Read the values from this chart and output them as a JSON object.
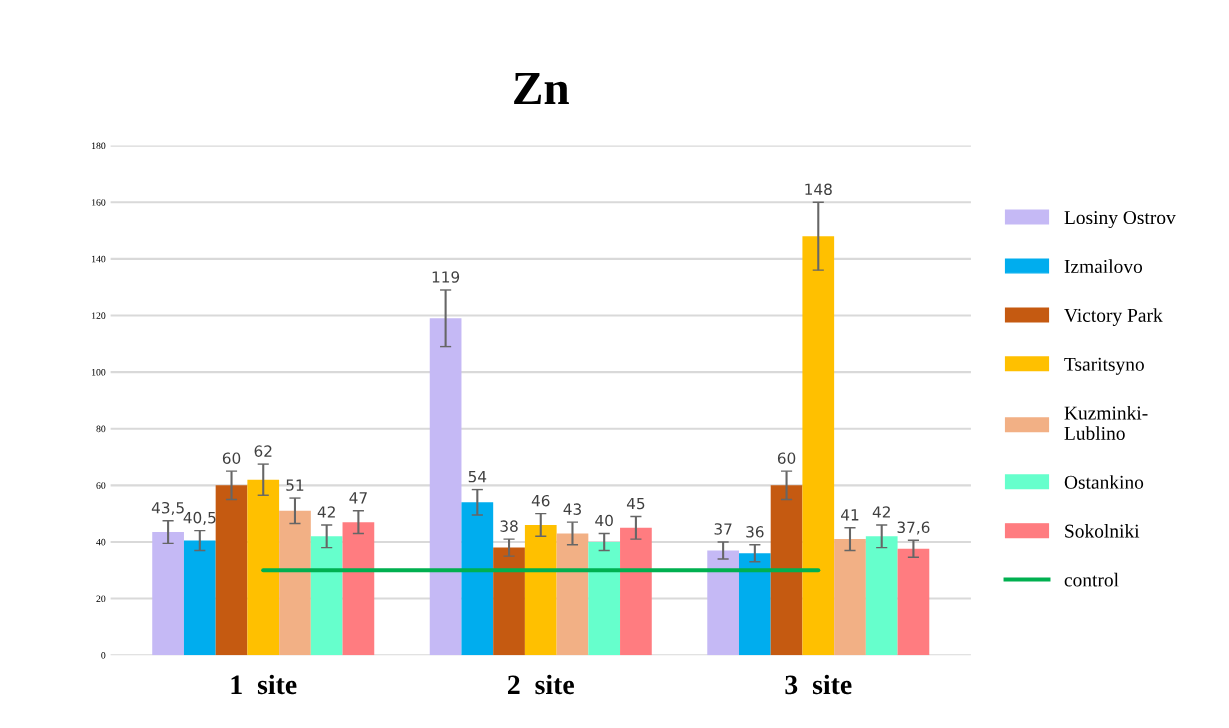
{
  "chart_data": {
    "type": "bar",
    "title": "Zn",
    "categories": [
      "1  site",
      "2  site",
      "3  site"
    ],
    "ylim": [
      0,
      180
    ],
    "yticks": [
      0,
      20,
      40,
      60,
      80,
      100,
      120,
      140,
      160,
      180
    ],
    "grid": "y",
    "legend": "right",
    "series": [
      {
        "name": "Losiny Ostrov",
        "color": "#c5b9f5",
        "values": [
          43.5,
          119,
          37
        ],
        "errors": [
          4,
          10,
          3
        ],
        "value_labels": [
          "43,5",
          "119",
          "37"
        ]
      },
      {
        "name": "Izmailovo",
        "color": "#00adee",
        "values": [
          40.5,
          54,
          36
        ],
        "errors": [
          3.5,
          4.5,
          3
        ],
        "value_labels": [
          "40,5",
          "54",
          "36"
        ]
      },
      {
        "name": "Victory Park",
        "color": "#c55a11",
        "values": [
          60,
          38,
          60
        ],
        "errors": [
          5,
          3,
          5
        ],
        "value_labels": [
          "60",
          "38",
          "60"
        ]
      },
      {
        "name": "Tsaritsyno",
        "color": "#ffc000",
        "values": [
          62,
          46,
          148
        ],
        "errors": [
          5.5,
          4,
          12
        ],
        "value_labels": [
          "62",
          "46",
          "148"
        ]
      },
      {
        "name": "Kuzminki-\nLublino",
        "color": "#f2b085",
        "values": [
          51,
          43,
          41
        ],
        "errors": [
          4.5,
          4,
          4
        ],
        "value_labels": [
          "51",
          "43",
          "41"
        ]
      },
      {
        "name": "Ostankino",
        "color": "#66ffcc",
        "values": [
          42,
          40,
          42
        ],
        "errors": [
          4,
          3,
          4
        ],
        "value_labels": [
          "42",
          "40",
          "42"
        ]
      },
      {
        "name": "Sokolniki",
        "color": "#ff7c80",
        "values": [
          47,
          45,
          37.6
        ],
        "errors": [
          4,
          4,
          3
        ],
        "value_labels": [
          "47",
          "45",
          "37,6"
        ]
      },
      {
        "name": "control",
        "type": "line",
        "color": "#00b050",
        "values": [
          30,
          30,
          30
        ]
      }
    ]
  }
}
